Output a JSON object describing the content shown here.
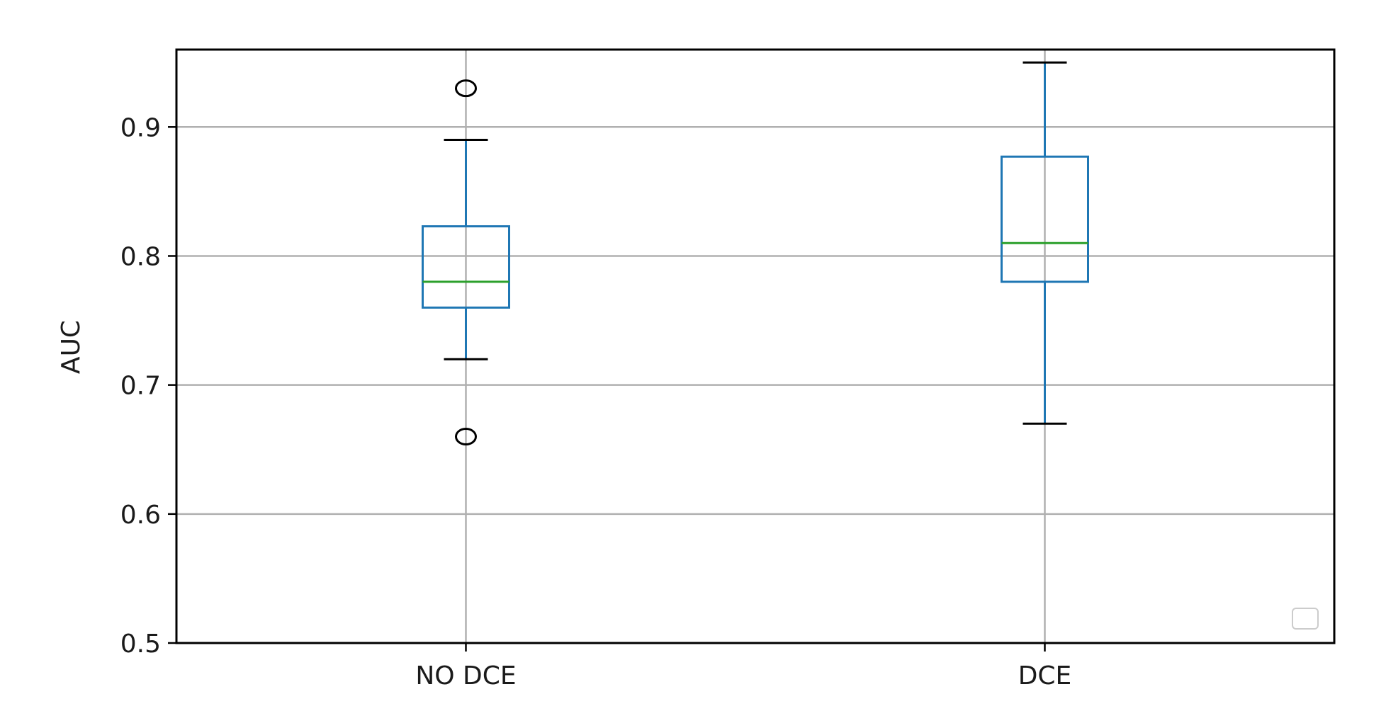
{
  "chart_data": {
    "type": "box",
    "title": "",
    "xlabel": "",
    "ylabel": "AUC",
    "ylim": [
      0.5,
      0.96
    ],
    "yticks": [
      0.5,
      0.6,
      0.7,
      0.8,
      0.9
    ],
    "ytick_labels": [
      "0.5",
      "0.6",
      "0.7",
      "0.8",
      "0.9"
    ],
    "categories": [
      "NO DCE",
      "DCE"
    ],
    "grid": true,
    "legend": "empty box, lower-right",
    "boxes": [
      {
        "category": "NO DCE",
        "whisker_low": 0.72,
        "q1": 0.76,
        "median": 0.78,
        "q3": 0.823,
        "whisker_high": 0.89,
        "outliers": [
          0.93,
          0.66
        ]
      },
      {
        "category": "DCE",
        "whisker_low": 0.67,
        "q1": 0.78,
        "median": 0.81,
        "q3": 0.877,
        "whisker_high": 0.95,
        "outliers": []
      }
    ],
    "colors": {
      "box": "#1f77b4",
      "median": "#2ca02c",
      "whisker": "#1f77b4",
      "cap": "#000000",
      "outlier": "#000000",
      "grid": "#b0b0b0",
      "axes": "#000000"
    }
  }
}
